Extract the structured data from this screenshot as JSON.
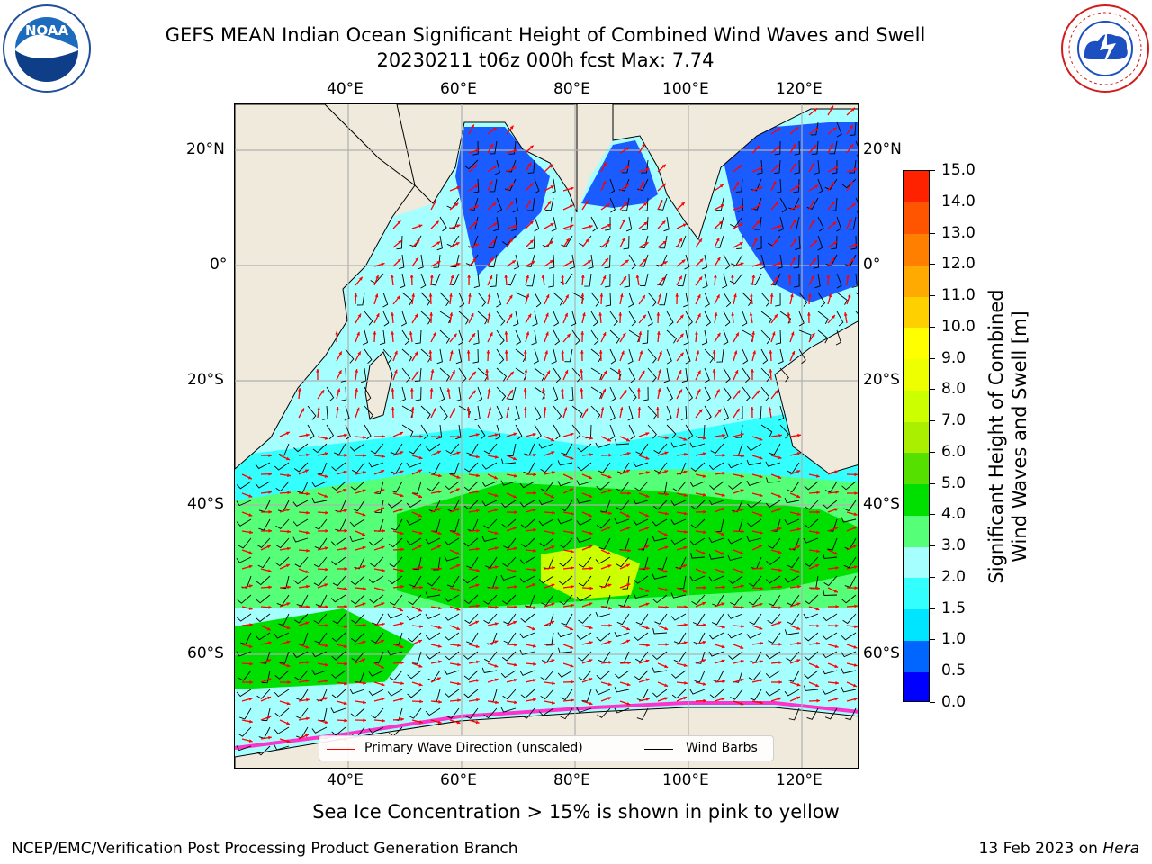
{
  "header": {
    "title_line1": "GEFS MEAN Indian Ocean Significant Height of Combined Wind Waves and Swell",
    "title_line2": "20230211 t06z 000h fcst   Max: 7.74"
  },
  "logos": {
    "left": {
      "icon": "noaa-logo-icon",
      "text": "NOAA"
    },
    "right": {
      "icon": "nws-logo-icon",
      "text": "NATIONAL WEATHER SERVICE"
    }
  },
  "map": {
    "lon_ticks_top": [
      "40°E",
      "60°E",
      "80°E",
      "100°E",
      "120°E"
    ],
    "lon_ticks_bottom": [
      "40°E",
      "60°E",
      "80°E",
      "100°E",
      "120°E"
    ],
    "lat_ticks_left": [
      "20°N",
      "0°",
      "20°S",
      "40°S",
      "60°S"
    ],
    "lat_ticks_right": [
      "20°N",
      "0°",
      "20°S",
      "40°S",
      "60°S"
    ],
    "extent": {
      "lon": [
        20,
        130
      ],
      "lat": [
        -73,
        28
      ]
    },
    "colors": {
      "land": "#efeadc",
      "gridline": "#b0b0b0",
      "wave_arrow": "#ff0000",
      "wind_barb": "#000000",
      "sea_ice": "#ff33cc"
    }
  },
  "colorbar": {
    "label": "Significant Height of Combined Wind Waves and Swell [m]",
    "label_line1": "Significant Height of Combined",
    "label_line2": "Wind Waves and Swell [m]",
    "tick_labels": [
      "0.0",
      "0.5",
      "1.0",
      "1.5",
      "2.0",
      "3.0",
      "4.0",
      "5.0",
      "6.0",
      "7.0",
      "8.0",
      "9.0",
      "10.0",
      "11.0",
      "12.0",
      "13.0",
      "14.0",
      "15.0"
    ],
    "colors": [
      "#0000ff",
      "#0066ff",
      "#00e5ff",
      "#33ffff",
      "#a6ffff",
      "#55ff77",
      "#00e000",
      "#55e000",
      "#aaee00",
      "#ccff00",
      "#eeff00",
      "#ffff00",
      "#ffd000",
      "#ffaa00",
      "#ff8000",
      "#ff5500",
      "#ff2200"
    ]
  },
  "legend": {
    "items": [
      {
        "label": "Primary Wave Direction (unscaled)",
        "color": "#ff0000"
      },
      {
        "label": "Wind Barbs",
        "color": "#000000"
      }
    ]
  },
  "captions": {
    "sea_ice_note": "Sea Ice Concentration > 15% is shown in pink to yellow",
    "footer_left": "NCEP/EMC/Verification Post Processing Product Generation Branch",
    "footer_right_date": "13 Feb 2023 on ",
    "footer_right_host": "Hera"
  }
}
